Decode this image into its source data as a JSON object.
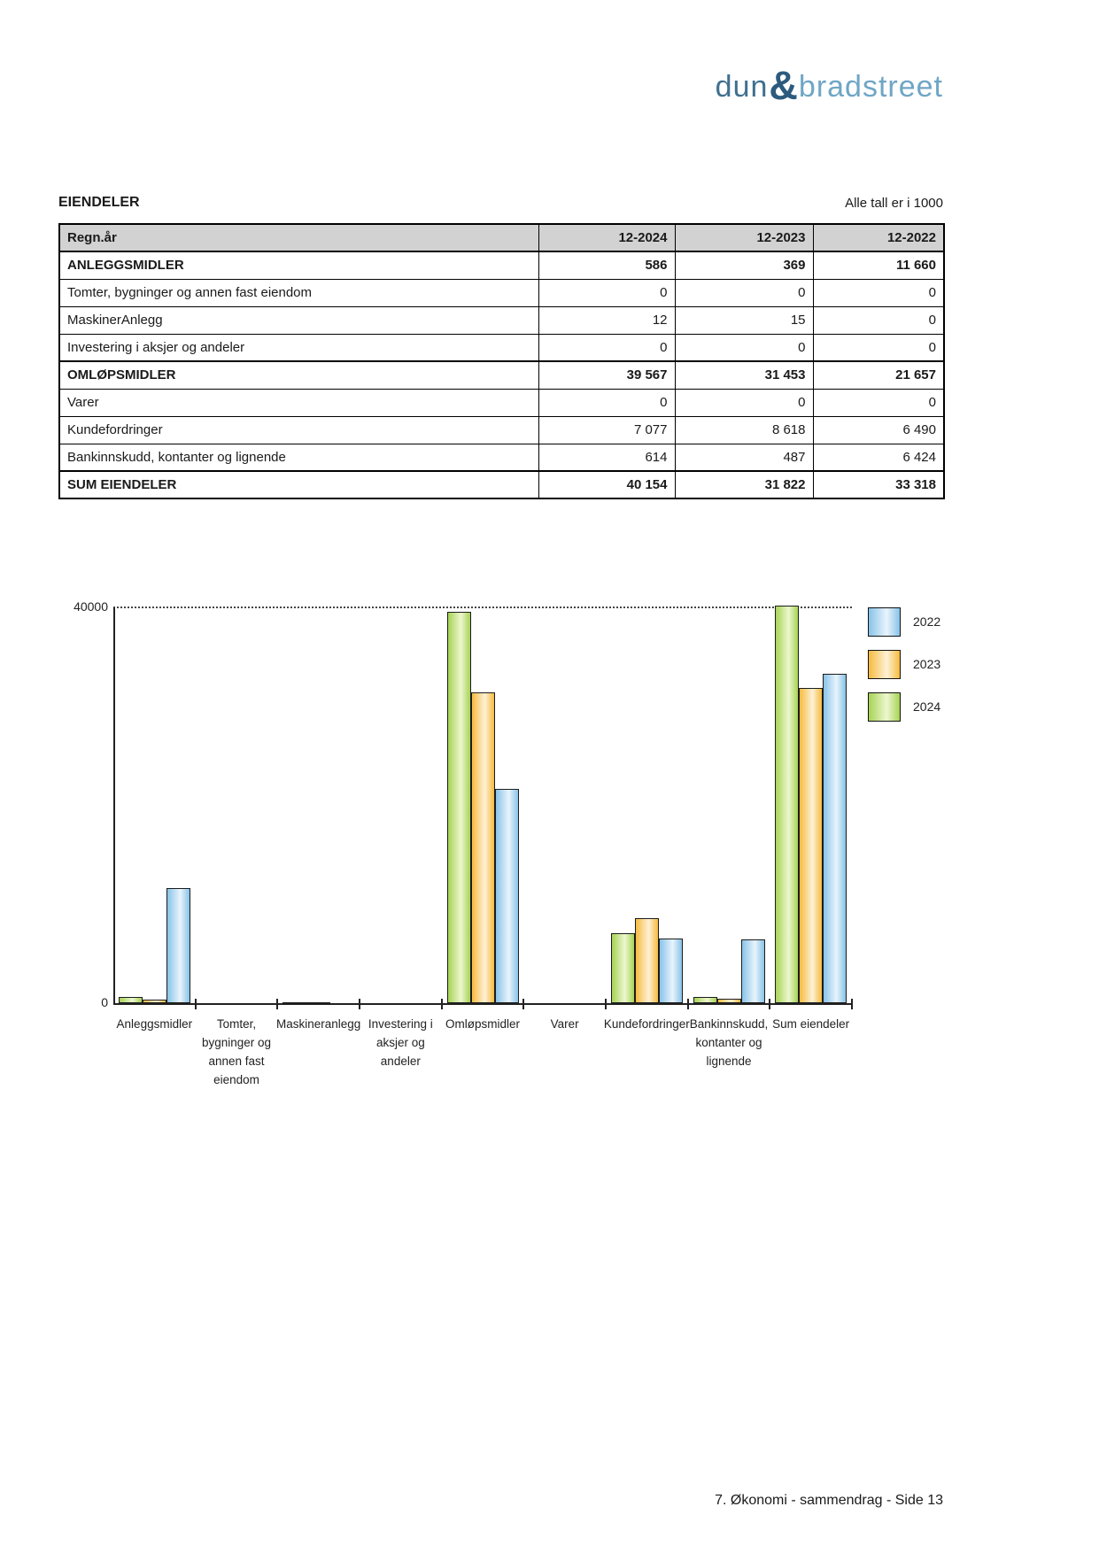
{
  "logo": {
    "dun": "dun",
    "ampersand": "&",
    "bradstreet": "bradstreet"
  },
  "header": {
    "title": "EIENDELER",
    "units_note": "Alle tall er i 1000"
  },
  "table": {
    "columns": [
      "Regn.år",
      "12-2024",
      "12-2023",
      "12-2022"
    ],
    "rows": [
      {
        "label": "ANLEGGSMIDLER",
        "bold": true,
        "values": [
          "586",
          "369",
          "11 660"
        ]
      },
      {
        "label": "Tomter, bygninger og annen fast eiendom",
        "bold": false,
        "values": [
          "0",
          "0",
          "0"
        ]
      },
      {
        "label": "MaskinerAnlegg",
        "bold": false,
        "values": [
          "12",
          "15",
          "0"
        ]
      },
      {
        "label": "Investering i aksjer og andeler",
        "bold": false,
        "values": [
          "0",
          "0",
          "0"
        ]
      },
      {
        "label": "OMLØPSMIDLER",
        "bold": true,
        "values": [
          "39 567",
          "31 453",
          "21 657"
        ]
      },
      {
        "label": "Varer",
        "bold": false,
        "values": [
          "0",
          "0",
          "0"
        ]
      },
      {
        "label": "Kundefordringer",
        "bold": false,
        "values": [
          "7 077",
          "8 618",
          "6 490"
        ]
      },
      {
        "label": "Bankinnskudd, kontanter og lignende",
        "bold": false,
        "values": [
          "614",
          "487",
          "6 424"
        ]
      },
      {
        "label": "SUM EIENDELER",
        "bold": true,
        "values": [
          "40 154",
          "31 822",
          "33 318"
        ]
      }
    ]
  },
  "chart_data": {
    "type": "bar",
    "title": "",
    "xlabel": "",
    "ylabel": "",
    "ylim": [
      0,
      40000
    ],
    "yticks": [
      "40000",
      "0"
    ],
    "grid": "dotted line at 40000",
    "legend_position": "right",
    "categories": [
      "Anleggsmidler",
      "Tomter, bygninger og annen fast eiendom",
      "Maskineranlegg",
      "Investering i aksjer og andeler",
      "Omløpsmidler",
      "Varer",
      "Kundefordringer",
      "Bankinnskudd, kontanter og lignende",
      "Sum eiendeler"
    ],
    "category_label_lines": [
      [
        "Anleggsmidler"
      ],
      [
        "Tomter,",
        "bygninger og",
        "annen fast",
        "eiendom"
      ],
      [
        "Maskineranlegg"
      ],
      [
        "Investering i",
        "aksjer og",
        "andeler"
      ],
      [
        "Omløpsmidler"
      ],
      [
        "Varer"
      ],
      [
        "Kundefordringer"
      ],
      [
        "Bankinnskudd,",
        "kontanter og",
        "lignende"
      ],
      [
        "Sum eiendeler"
      ]
    ],
    "series": [
      {
        "name": "2024",
        "color_edge": "#a6d354",
        "color_light": "#edf7cf",
        "values": [
          586,
          0,
          12,
          0,
          39567,
          0,
          7077,
          614,
          40154
        ]
      },
      {
        "name": "2023",
        "color_edge": "#f6bb3f",
        "color_light": "#fdf1d6",
        "values": [
          369,
          0,
          15,
          0,
          31453,
          0,
          8618,
          487,
          31822
        ]
      },
      {
        "name": "2022",
        "color_edge": "#88c3e8",
        "color_light": "#e9f4fc",
        "values": [
          11660,
          0,
          0,
          0,
          21657,
          0,
          6490,
          6424,
          33318
        ]
      }
    ],
    "legend": [
      "2022",
      "2023",
      "2024"
    ]
  },
  "footer": {
    "text": "7. Økonomi - sammendrag - Side 13"
  }
}
